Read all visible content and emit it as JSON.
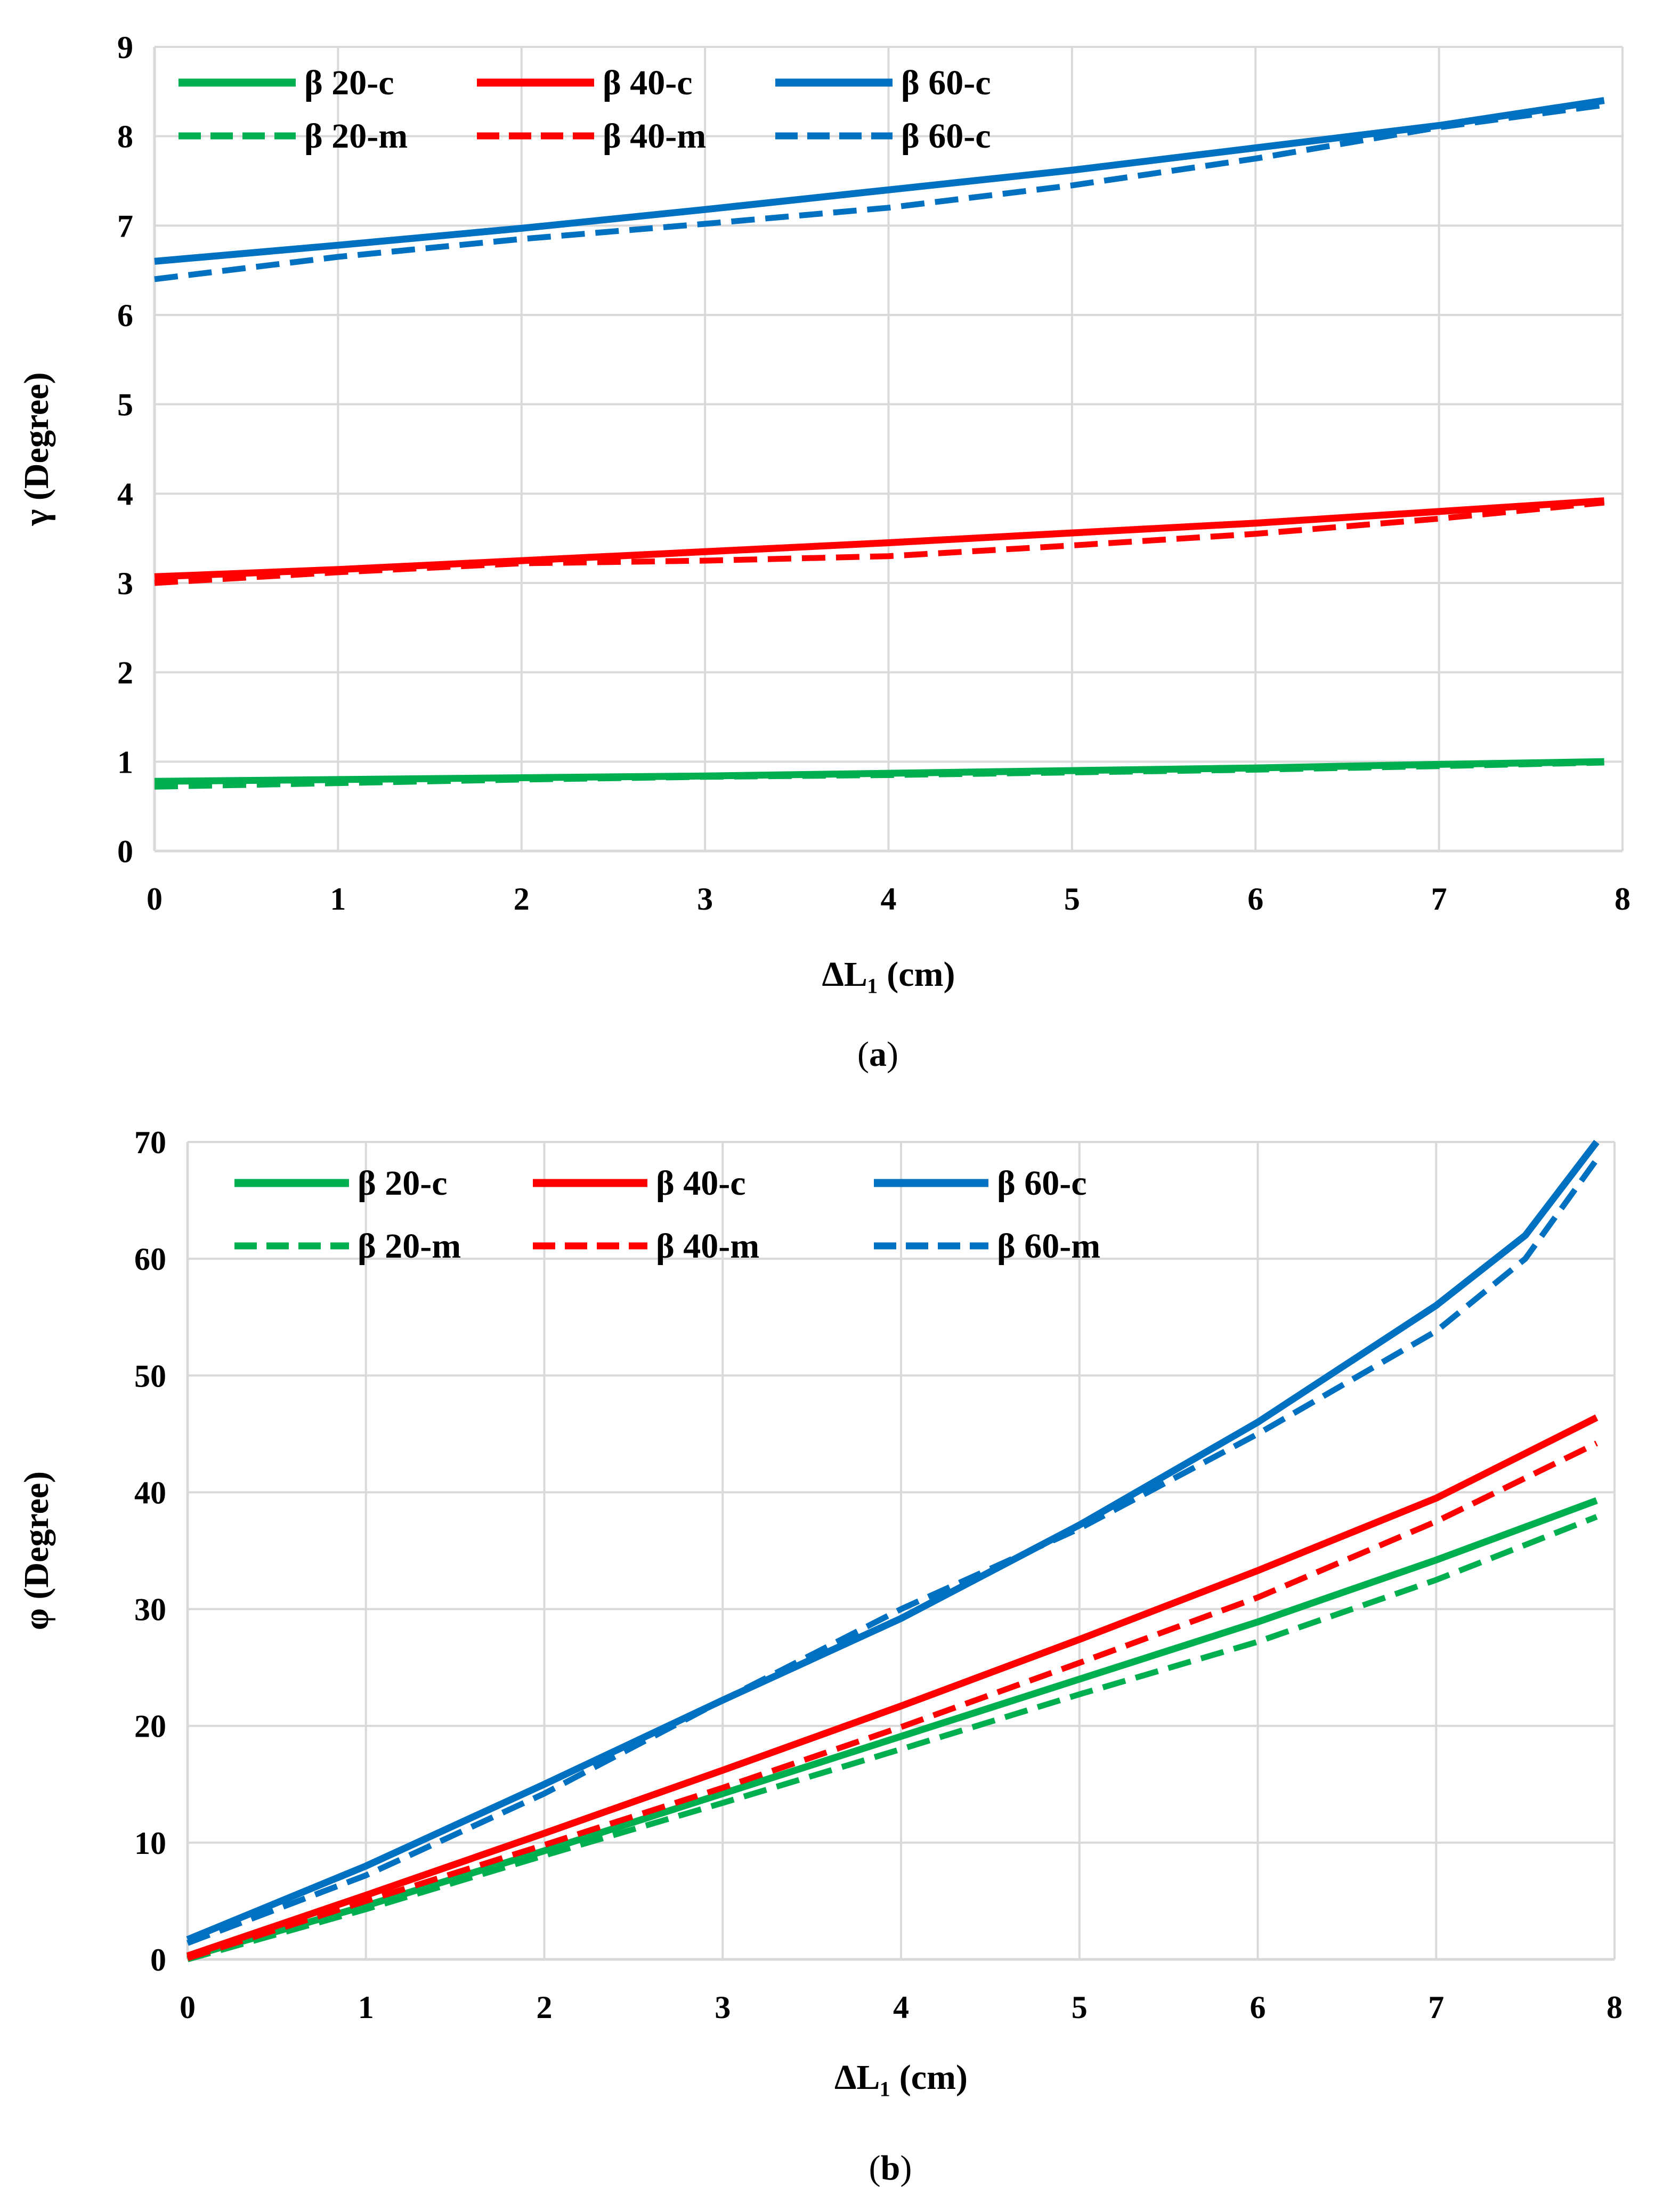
{
  "chart_data": [
    {
      "type": "line",
      "panel_label": "(a)",
      "caption_prefix": "(",
      "caption_letter": "a",
      "caption_suffix": ")",
      "xlabel": "ΔL₁ (cm)",
      "ylabel": "γ (Degree)",
      "xlim": [
        0,
        8
      ],
      "ylim": [
        0,
        9
      ],
      "x_ticks": [
        0,
        1,
        2,
        3,
        4,
        5,
        6,
        7,
        8
      ],
      "y_ticks": [
        0,
        1,
        2,
        3,
        4,
        5,
        6,
        7,
        8,
        9
      ],
      "grid": true,
      "legend_position": "top-left",
      "series": [
        {
          "name": "β 20-c",
          "color": "#00b050",
          "dash": "solid",
          "x": [
            0,
            1,
            2,
            3,
            4,
            5,
            6,
            7,
            7.9
          ],
          "y": [
            0.78,
            0.8,
            0.82,
            0.84,
            0.87,
            0.9,
            0.93,
            0.97,
            1.0
          ]
        },
        {
          "name": "β 40-c",
          "color": "#ff0000",
          "dash": "solid",
          "x": [
            0,
            1,
            2,
            3,
            4,
            5,
            6,
            7,
            7.9
          ],
          "y": [
            3.07,
            3.15,
            3.25,
            3.35,
            3.45,
            3.56,
            3.67,
            3.8,
            3.92
          ]
        },
        {
          "name": "β 60-c",
          "color": "#0070c0",
          "dash": "solid",
          "x": [
            0,
            1,
            2,
            3,
            4,
            5,
            6,
            7,
            7.9
          ],
          "y": [
            6.6,
            6.78,
            6.97,
            7.18,
            7.4,
            7.62,
            7.87,
            8.12,
            8.4
          ]
        },
        {
          "name": "β 20-m",
          "color": "#00b050",
          "dash": "dashed",
          "x": [
            0,
            1,
            2,
            3,
            4,
            5,
            6,
            7,
            7.9
          ],
          "y": [
            0.72,
            0.76,
            0.8,
            0.83,
            0.85,
            0.88,
            0.91,
            0.95,
            0.99
          ]
        },
        {
          "name": "β 40-m",
          "color": "#ff0000",
          "dash": "dashed",
          "x": [
            0,
            1,
            2,
            3,
            4,
            5,
            6,
            7,
            7.9
          ],
          "y": [
            3.0,
            3.12,
            3.22,
            3.25,
            3.3,
            3.42,
            3.55,
            3.72,
            3.9
          ]
        },
        {
          "name": "β 60-c",
          "color": "#0070c0",
          "dash": "dashed",
          "x": [
            0,
            1,
            2,
            3,
            4,
            5,
            6,
            7,
            7.9
          ],
          "y": [
            6.4,
            6.65,
            6.85,
            7.02,
            7.2,
            7.45,
            7.75,
            8.1,
            8.35
          ]
        }
      ]
    },
    {
      "type": "line",
      "panel_label": "(b)",
      "caption_prefix": "(",
      "caption_letter": "b",
      "caption_suffix": ")",
      "xlabel": "ΔL₁ (cm)",
      "ylabel": "φ (Degree)",
      "xlim": [
        0,
        8
      ],
      "ylim": [
        0,
        70
      ],
      "x_ticks": [
        0,
        1,
        2,
        3,
        4,
        5,
        6,
        7,
        8
      ],
      "y_ticks": [
        0,
        10,
        20,
        30,
        40,
        50,
        60,
        70
      ],
      "grid": true,
      "legend_position": "top-left",
      "series": [
        {
          "name": "β 20-c",
          "color": "#00b050",
          "dash": "solid",
          "x": [
            0,
            1,
            2,
            3,
            4,
            5,
            6,
            7,
            7.9
          ],
          "y": [
            0.2,
            4.6,
            9.3,
            14.2,
            19.1,
            24.0,
            28.9,
            34.2,
            39.3
          ]
        },
        {
          "name": "β 40-c",
          "color": "#ff0000",
          "dash": "solid",
          "x": [
            0,
            1,
            2,
            3,
            4,
            5,
            6,
            7,
            7.9
          ],
          "y": [
            0.3,
            5.5,
            10.8,
            16.2,
            21.7,
            27.4,
            33.3,
            39.5,
            46.4
          ]
        },
        {
          "name": "β 60-c",
          "color": "#0070c0",
          "dash": "solid",
          "x": [
            0,
            1,
            2,
            3,
            4,
            5,
            6,
            7,
            7.5,
            7.9
          ],
          "y": [
            1.7,
            8.0,
            15.0,
            22.2,
            29.2,
            37.2,
            46.0,
            56.0,
            62.0,
            70.0
          ]
        },
        {
          "name": "β 20-m",
          "color": "#00b050",
          "dash": "dashed",
          "x": [
            0,
            1,
            2,
            3,
            4,
            5,
            6,
            7,
            7.9
          ],
          "y": [
            0.0,
            4.3,
            8.9,
            13.4,
            18.0,
            22.7,
            27.2,
            32.5,
            37.9
          ]
        },
        {
          "name": "β 40-m",
          "color": "#ff0000",
          "dash": "dashed",
          "x": [
            0,
            1,
            2,
            3,
            4,
            5,
            6,
            7,
            7.9
          ],
          "y": [
            0.1,
            5.0,
            9.8,
            14.7,
            19.9,
            25.4,
            31.0,
            37.5,
            44.2
          ]
        },
        {
          "name": "β 60-m",
          "color": "#0070c0",
          "dash": "dashed",
          "x": [
            0,
            1,
            2,
            3,
            4,
            5,
            6,
            7,
            7.5,
            7.9
          ],
          "y": [
            1.4,
            7.2,
            14.2,
            22.2,
            30.0,
            36.9,
            45.0,
            53.8,
            60.0,
            68.5
          ]
        }
      ]
    }
  ]
}
